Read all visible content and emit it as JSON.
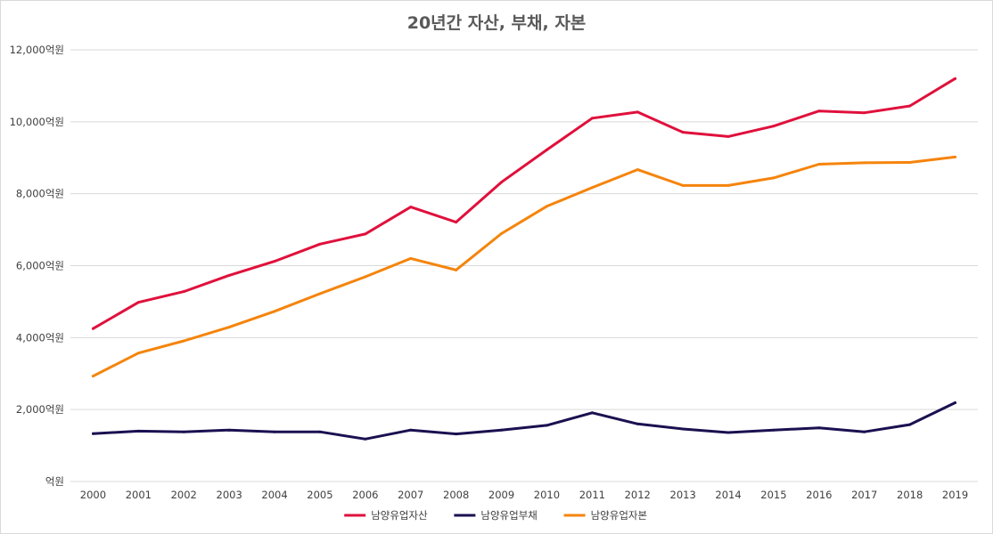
{
  "chart_data": {
    "type": "line",
    "title": "20년간 자산, 부채, 자본",
    "x": [
      "2000",
      "2001",
      "2002",
      "2003",
      "2004",
      "2005",
      "2006",
      "2007",
      "2008",
      "2009",
      "2010",
      "2011",
      "2012",
      "2013",
      "2014",
      "2015",
      "2016",
      "2017",
      "2018",
      "2019"
    ],
    "y_ticks": [
      {
        "value": 0,
        "label": "억원"
      },
      {
        "value": 2000,
        "label": "2,000억원"
      },
      {
        "value": 4000,
        "label": "4,000억원"
      },
      {
        "value": 6000,
        "label": "6,000억원"
      },
      {
        "value": 8000,
        "label": "8,000억원"
      },
      {
        "value": 10000,
        "label": "10,000억원"
      },
      {
        "value": 12000,
        "label": "12,000억원"
      }
    ],
    "ylim": [
      0,
      12000
    ],
    "grid": true,
    "legend_position": "bottom",
    "series": [
      {
        "name": "남양유업자산",
        "color": "#e0103c",
        "values": [
          4250,
          4980,
          5280,
          5730,
          6120,
          6600,
          6880,
          7630,
          7210,
          8320,
          9220,
          10100,
          10270,
          9710,
          9590,
          9880,
          10300,
          10250,
          10440,
          11200
        ]
      },
      {
        "name": "남양유업부채",
        "color": "#1b1050",
        "values": [
          1330,
          1400,
          1380,
          1430,
          1380,
          1380,
          1180,
          1430,
          1320,
          1430,
          1560,
          1910,
          1600,
          1460,
          1360,
          1430,
          1490,
          1380,
          1580,
          2190
        ]
      },
      {
        "name": "남양유업자본",
        "color": "#f5840c",
        "values": [
          2930,
          3570,
          3910,
          4290,
          4730,
          5220,
          5690,
          6200,
          5880,
          6890,
          7650,
          8170,
          8670,
          8230,
          8230,
          8440,
          8820,
          8860,
          8870,
          9020
        ]
      }
    ]
  }
}
